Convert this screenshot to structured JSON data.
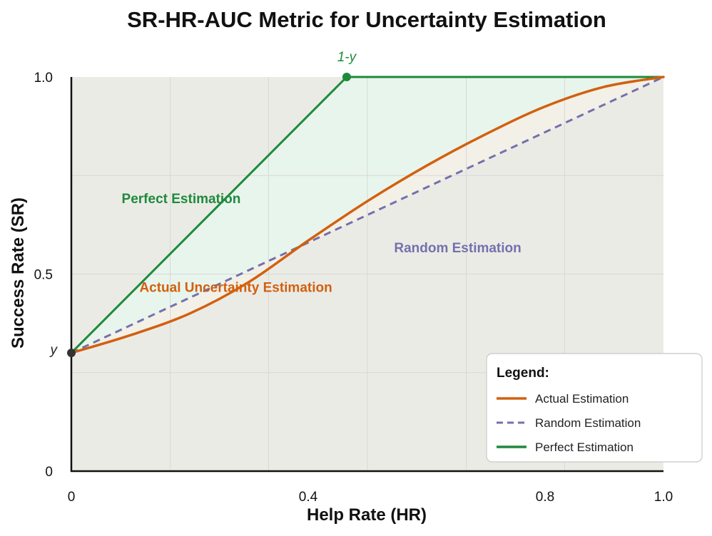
{
  "chart_data": {
    "type": "line",
    "title": "SR-HR-AUC Metric for Uncertainty Estimation",
    "xlabel": "Help Rate (HR)",
    "ylabel": "Success Rate (SR)",
    "xlim": [
      0,
      1.0
    ],
    "ylim": [
      0,
      1.0
    ],
    "grid": true,
    "x_ticks": [
      {
        "value": 0,
        "label": "0"
      },
      {
        "value": 0.4,
        "label": "0.4"
      },
      {
        "value": 0.8,
        "label": "0.8"
      },
      {
        "value": 1.0,
        "label": "1.0"
      }
    ],
    "y_ticks": [
      {
        "value": 0,
        "label": "0"
      },
      {
        "value": 0.5,
        "label": "0.5"
      },
      {
        "value": 1.0,
        "label": "1.0"
      }
    ],
    "grid_x": [
      0.167,
      0.333,
      0.5,
      0.667,
      0.833
    ],
    "grid_y": [
      0.25,
      0.5,
      0.75
    ],
    "series": [
      {
        "name": "Actual Estimation",
        "color": "#d2600f",
        "dash": false,
        "x": [
          0,
          0.1,
          0.2,
          0.3,
          0.4,
          0.5,
          0.6,
          0.7,
          0.8,
          0.9,
          1.0
        ],
        "y": [
          0.3,
          0.345,
          0.4,
          0.48,
          0.585,
          0.685,
          0.775,
          0.855,
          0.925,
          0.975,
          1.0
        ]
      },
      {
        "name": "Random Estimation",
        "color": "#7470ad",
        "dash": true,
        "x": [
          0,
          1.0
        ],
        "y": [
          0.3,
          1.0
        ]
      },
      {
        "name": "Perfect Estimation",
        "color": "#1e8a3c",
        "dash": false,
        "x": [
          0,
          0.465,
          1.0
        ],
        "y": [
          0.3,
          1.0,
          1.0
        ]
      }
    ],
    "points": [
      {
        "name": "y",
        "label": "y",
        "x": 0,
        "y": 0.3,
        "color": "#333333"
      },
      {
        "name": "1-y",
        "label": "1-y",
        "x": 0.465,
        "y": 1.0,
        "color": "#1e8a3c"
      }
    ],
    "annotations": [
      {
        "text": "Perfect Estimation",
        "color": "#1e8a3c",
        "x": 0.085,
        "y": 0.68
      },
      {
        "text": "Actual Uncertainty Estimation",
        "color": "#d2600f",
        "x": 0.115,
        "y": 0.455
      },
      {
        "text": "Random Estimation",
        "color": "#7470ad",
        "x": 0.545,
        "y": 0.555
      }
    ],
    "legend": {
      "title": "Legend:",
      "placement": "bottom-right",
      "entries": [
        "Actual Estimation",
        "Random Estimation",
        "Perfect Estimation"
      ]
    },
    "fills": {
      "perfect_color": "#e8f5ec",
      "actual_color": "#f3f0e7",
      "base_color": "#ebebe6"
    }
  }
}
